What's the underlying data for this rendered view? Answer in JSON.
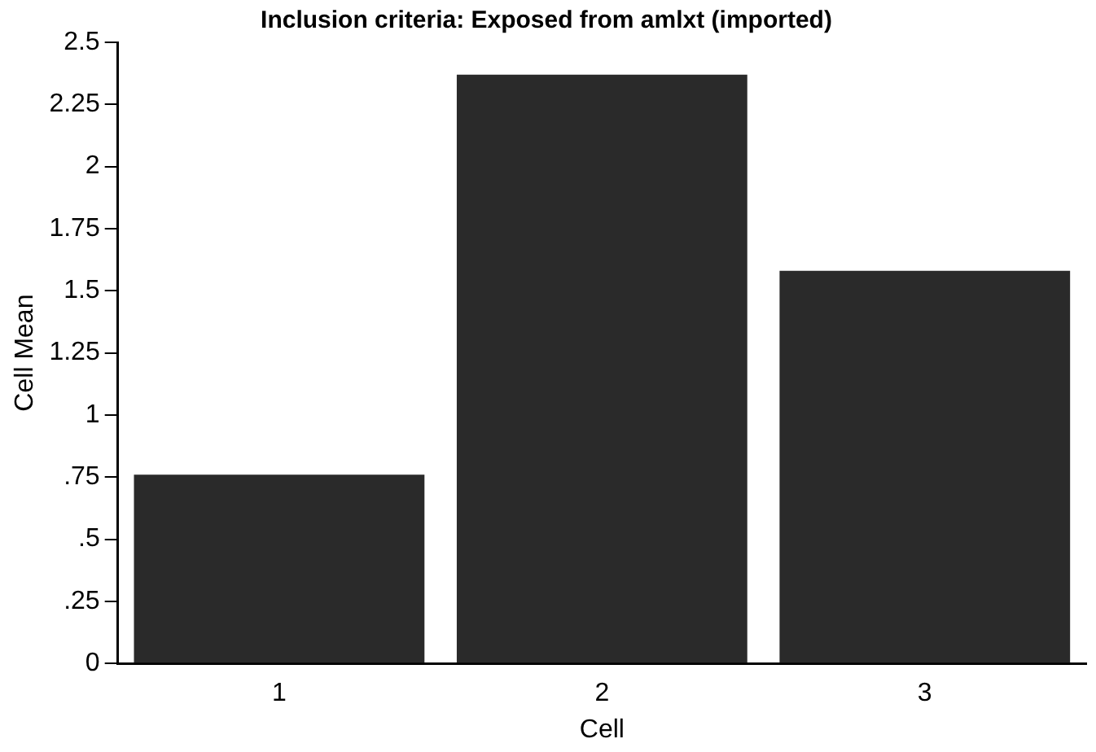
{
  "chart_data": {
    "type": "bar",
    "title": "Inclusion criteria: Exposed from amlxt (imported)",
    "xlabel": "Cell",
    "ylabel": "Cell Mean",
    "categories": [
      "1",
      "2",
      "3"
    ],
    "values": [
      0.76,
      2.37,
      1.58
    ],
    "color": "#2a2a2a",
    "ylim": [
      0,
      2.5
    ],
    "yticks": [
      0,
      {
        "value": 0.25,
        "label": ".25"
      },
      {
        "value": 0.5,
        "label": ".5"
      },
      {
        "value": 0.75,
        "label": ".75"
      },
      1,
      1.25,
      1.5,
      1.75,
      2,
      2.25,
      2.5
    ],
    "grid": false,
    "legend": false
  }
}
